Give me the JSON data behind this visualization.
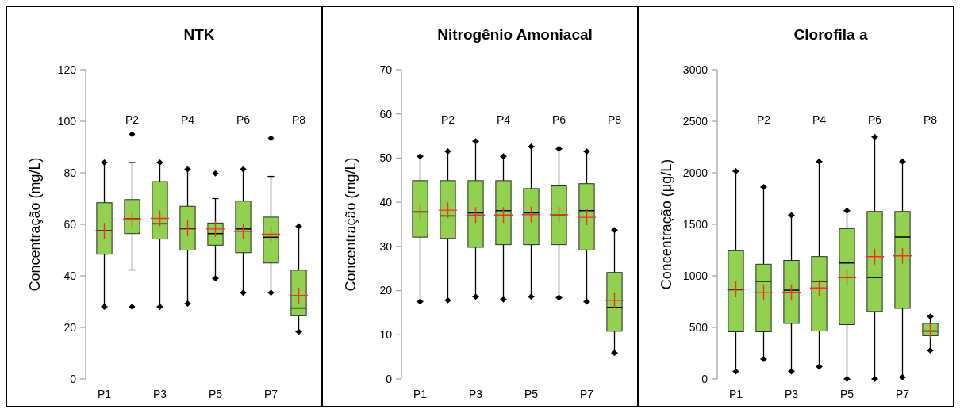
{
  "chart_data": [
    {
      "type": "box",
      "title": "NTK",
      "ylabel": "Concentração (mg/L)",
      "categories": [
        "P1",
        "P2",
        "P3",
        "P4",
        "P5",
        "P6",
        "P7",
        "P8"
      ],
      "color": "#92d050",
      "ylim": [
        0,
        120
      ],
      "yticks": [
        0,
        20,
        40,
        60,
        80,
        100,
        120
      ],
      "grid": false,
      "boxes": [
        {
          "low": 28,
          "q1": 48.4,
          "median": 57.6,
          "q3": 68.4,
          "high": 84,
          "outliers": [
            28,
            84
          ]
        },
        {
          "low": 42.3,
          "q1": 56.4,
          "median": 62.1,
          "q3": 69.6,
          "high": 84,
          "outliers": [
            28,
            95
          ]
        },
        {
          "low": 28,
          "q1": 54.3,
          "median": 60.2,
          "q3": 76.6,
          "high": 84,
          "outliers": [
            28,
            84
          ]
        },
        {
          "low": 29.2,
          "q1": 50,
          "median": 58.3,
          "q3": 67,
          "high": 81.4,
          "outliers": [
            29.2,
            81.4
          ]
        },
        {
          "low": 39,
          "q1": 51.9,
          "median": 56.4,
          "q3": 60.5,
          "high": 70,
          "outliers": [
            39,
            79.8
          ]
        },
        {
          "low": 33.5,
          "q1": 49,
          "median": 58.2,
          "q3": 69,
          "high": 81.4,
          "outliers": [
            33.5,
            81.4
          ]
        },
        {
          "low": 33.5,
          "q1": 45,
          "median": 55,
          "q3": 62.8,
          "high": 78.6,
          "outliers": [
            33.5,
            93.5
          ]
        },
        {
          "low": 18.3,
          "q1": 24.5,
          "median": 27.5,
          "q3": 42.2,
          "high": 59.2,
          "outliers": [
            18.3,
            59.2
          ]
        }
      ],
      "series": [
        {
          "type": "scatter",
          "marker": "cross",
          "color": "#ff2a2a",
          "x": [
            "P1",
            "P2",
            "P3",
            "P4",
            "P5",
            "P6",
            "P7",
            "P8"
          ],
          "values": [
            57.5,
            62,
            62.3,
            58.5,
            58.2,
            57.2,
            56.2,
            32.4
          ]
        }
      ]
    },
    {
      "type": "box",
      "title": "Nitrogênio Amoniacal",
      "ylabel": "Concentração (mg/L)",
      "categories": [
        "P1",
        "P2",
        "P3",
        "P4",
        "P5",
        "P6",
        "P7",
        "P8"
      ],
      "color": "#92d050",
      "ylim": [
        0,
        70
      ],
      "yticks": [
        0,
        10,
        20,
        30,
        40,
        50,
        60,
        70
      ],
      "grid": false,
      "boxes": [
        {
          "low": 17.5,
          "q1": 32.1,
          "median": 37.8,
          "q3": 44.9,
          "high": 50.4,
          "outliers": [
            17.5,
            50.4
          ]
        },
        {
          "low": 17.8,
          "q1": 31.8,
          "median": 36.9,
          "q3": 44.9,
          "high": 51.5,
          "outliers": [
            17.8,
            51.5
          ]
        },
        {
          "low": 18.6,
          "q1": 29.8,
          "median": 37.6,
          "q3": 44.9,
          "high": 53.8,
          "outliers": [
            18.6,
            53.8
          ]
        },
        {
          "low": 18,
          "q1": 30.4,
          "median": 38.1,
          "q3": 44.9,
          "high": 50.4,
          "outliers": [
            18,
            50.4
          ]
        },
        {
          "low": 18.6,
          "q1": 30.4,
          "median": 37.6,
          "q3": 43.1,
          "high": 52.6,
          "outliers": [
            18.6,
            52.6
          ]
        },
        {
          "low": 18.4,
          "q1": 30.4,
          "median": 37.2,
          "q3": 43.7,
          "high": 52.1,
          "outliers": [
            18.4,
            52.1
          ]
        },
        {
          "low": 17.5,
          "q1": 29.2,
          "median": 38.1,
          "q3": 44.2,
          "high": 51.5,
          "outliers": [
            17.5,
            51.5
          ]
        },
        {
          "low": 5.9,
          "q1": 10.8,
          "median": 16.2,
          "q3": 24.1,
          "high": 33.7,
          "outliers": [
            5.9,
            33.7
          ]
        }
      ],
      "series": [
        {
          "type": "scatter",
          "marker": "cross",
          "color": "#ff2a2a",
          "x": [
            "P1",
            "P2",
            "P3",
            "P4",
            "P5",
            "P6",
            "P7",
            "P8"
          ],
          "values": [
            37.8,
            38.2,
            37.1,
            37.1,
            37.2,
            37.2,
            36.6,
            17.8
          ]
        }
      ]
    },
    {
      "type": "box",
      "title": "Clorofila a",
      "ylabel": "Concentração (μg/L)",
      "categories": [
        "P1",
        "P2",
        "P3",
        "P4",
        "P5",
        "P6",
        "P7",
        "P8"
      ],
      "color": "#92d050",
      "ylim": [
        0,
        3000
      ],
      "yticks": [
        0,
        500,
        1000,
        1500,
        2000,
        2500,
        3000
      ],
      "grid": false,
      "boxes": [
        {
          "low": 74,
          "q1": 458,
          "median": 866,
          "q3": 1244,
          "high": 2015,
          "outliers": [
            74,
            2015
          ]
        },
        {
          "low": 193,
          "q1": 458,
          "median": 947,
          "q3": 1113,
          "high": 1862,
          "outliers": [
            193,
            1862
          ]
        },
        {
          "low": 74,
          "q1": 539,
          "median": 861,
          "q3": 1150,
          "high": 1588,
          "outliers": [
            74,
            1588
          ]
        },
        {
          "low": 119,
          "q1": 465,
          "median": 947,
          "q3": 1187,
          "high": 2109,
          "outliers": [
            119,
            2109
          ]
        },
        {
          "low": 0,
          "q1": 527,
          "median": 1125,
          "q3": 1459,
          "high": 1632,
          "outliers": [
            0,
            1632
          ]
        },
        {
          "low": 0,
          "q1": 655,
          "median": 984,
          "q3": 1625,
          "high": 2349,
          "outliers": [
            0,
            2349
          ]
        },
        {
          "low": 17,
          "q1": 685,
          "median": 1377,
          "q3": 1625,
          "high": 2109,
          "outliers": [
            17,
            2109
          ]
        },
        {
          "low": 277,
          "q1": 420,
          "median": 465,
          "q3": 539,
          "high": 606,
          "outliers": [
            277,
            606
          ]
        }
      ],
      "series": [
        {
          "type": "scatter",
          "marker": "cross",
          "color": "#ff2a2a",
          "x": [
            "P1",
            "P2",
            "P3",
            "P4",
            "P5",
            "P6",
            "P7",
            "P8"
          ],
          "values": [
            870,
            836,
            841,
            883,
            982,
            1187,
            1194,
            465
          ]
        }
      ]
    }
  ]
}
